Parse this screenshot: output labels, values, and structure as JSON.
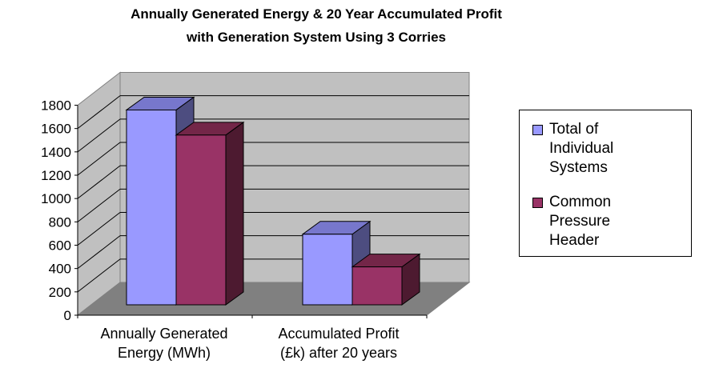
{
  "chart_data": {
    "type": "bar",
    "title": "Annually Generated Energy & 20 Year Accumulated Profit",
    "subtitle": "with Generation System Using 3 Corries",
    "categories": [
      "Annually Generated Energy (MWh)",
      "Accumulated Profit (£k) after 20 years"
    ],
    "category_lines": [
      [
        "Annually Generated",
        "Energy (MWh)"
      ],
      [
        "Accumulated Profit",
        "(£k) after 20 years"
      ]
    ],
    "series": [
      {
        "name": "Total of Individual Systems",
        "legend_lines": [
          "Total of",
          "Individual",
          "Systems"
        ],
        "color": "#9999ff",
        "values": [
          1670,
          605
        ]
      },
      {
        "name": "Common Pressure Header",
        "legend_lines": [
          "Common",
          "Pressure",
          "Header"
        ],
        "color": "#993366",
        "values": [
          1455,
          325
        ]
      }
    ],
    "ylim": [
      0,
      1800
    ],
    "yticks": [
      "0",
      "200",
      "400",
      "600",
      "800",
      "1000",
      "1200",
      "1400",
      "1600",
      "1800"
    ],
    "grid": true,
    "legend_position": "right",
    "style": "3d-clustered-column"
  }
}
